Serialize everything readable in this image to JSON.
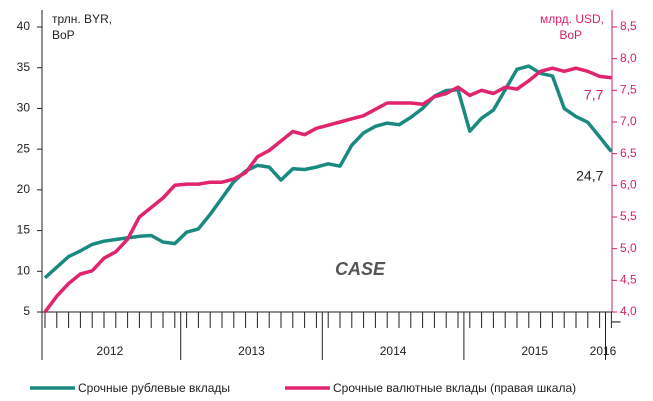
{
  "chart_data": {
    "type": "line",
    "ylabel": [
      "трлн. BYR,",
      "BoP"
    ],
    "y2label": [
      "млрд. USD,",
      "BoP"
    ],
    "logo": "CASE",
    "categories": [
      null,
      null,
      null,
      null,
      null,
      null,
      null,
      null,
      null,
      null,
      null,
      null,
      null,
      null,
      null,
      null,
      null,
      null,
      null,
      null,
      null,
      null,
      null,
      null,
      null,
      null,
      null,
      null,
      null,
      null,
      null,
      null,
      null,
      null,
      null,
      null,
      null,
      null,
      null,
      null,
      null,
      null,
      null,
      null,
      null,
      null,
      null,
      null,
      "I"
    ],
    "year_labels": [
      "2012",
      "2013",
      "2014",
      "2015",
      "2016"
    ],
    "ylim": [
      5,
      40
    ],
    "yticks": [
      5,
      10,
      15,
      20,
      25,
      30,
      35,
      40
    ],
    "y2lim": [
      4,
      8.5
    ],
    "y2ticks": [
      {
        "value": 4,
        "label": "4,0"
      },
      {
        "value": 4.5,
        "label": "4,5"
      },
      {
        "value": 5,
        "label": "5,0"
      },
      {
        "value": 5.5,
        "label": "5,5"
      },
      {
        "value": 6,
        "label": "6,0"
      },
      {
        "value": 6.5,
        "label": "6,5"
      },
      {
        "value": 7,
        "label": "7,0"
      },
      {
        "value": 7.5,
        "label": "7,5"
      },
      {
        "value": 8,
        "label": "8,0"
      },
      {
        "value": 8.5,
        "label": "8,5"
      }
    ],
    "grid": false,
    "series": [
      {
        "name": "Срочные рублевые вклады",
        "color": "#1a8a80",
        "axis": "y",
        "values": [
          9.2,
          10.5,
          11.8,
          12.5,
          13.3,
          13.7,
          13.9,
          14.1,
          14.3,
          14.4,
          13.6,
          13.4,
          14.8,
          15.2,
          17.0,
          19.0,
          21.0,
          22.3,
          23.0,
          22.8,
          21.2,
          22.6,
          22.5,
          22.8,
          23.2,
          22.9,
          25.5,
          27.0,
          27.8,
          28.2,
          28.0,
          28.9,
          30.0,
          31.5,
          32.2,
          32.3,
          27.2,
          28.8,
          29.8,
          32.3,
          34.8,
          35.2,
          34.3,
          34.0,
          30.0,
          29.0,
          28.3,
          26.5,
          24.7
        ],
        "value_labels": [
          null,
          null,
          null,
          null,
          null,
          null,
          null,
          null,
          null,
          null,
          null,
          null,
          null,
          null,
          null,
          null,
          null,
          null,
          null,
          null,
          null,
          null,
          null,
          null,
          null,
          null,
          null,
          null,
          null,
          null,
          null,
          null,
          null,
          null,
          null,
          null,
          null,
          null,
          null,
          null,
          null,
          null,
          null,
          null,
          null,
          null,
          null,
          null,
          "24,7"
        ]
      },
      {
        "name": "Срочные валютные вклады (правая шкала)",
        "color": "#e0246e",
        "axis": "y2",
        "values": [
          4.0,
          4.25,
          4.45,
          4.6,
          4.65,
          4.85,
          4.95,
          5.15,
          5.5,
          5.65,
          5.8,
          6.0,
          6.02,
          6.02,
          6.05,
          6.05,
          6.1,
          6.2,
          6.45,
          6.55,
          6.7,
          6.85,
          6.8,
          6.9,
          6.95,
          7.0,
          7.05,
          7.1,
          7.2,
          7.3,
          7.3,
          7.3,
          7.28,
          7.4,
          7.45,
          7.55,
          7.42,
          7.5,
          7.45,
          7.55,
          7.52,
          7.65,
          7.8,
          7.85,
          7.8,
          7.85,
          7.8,
          7.72,
          7.7
        ],
        "value_labels": [
          null,
          null,
          null,
          null,
          null,
          null,
          null,
          null,
          null,
          null,
          null,
          null,
          null,
          null,
          null,
          null,
          null,
          null,
          null,
          null,
          null,
          null,
          null,
          null,
          null,
          null,
          null,
          null,
          null,
          null,
          null,
          null,
          null,
          null,
          null,
          null,
          null,
          null,
          null,
          null,
          null,
          null,
          null,
          null,
          null,
          null,
          null,
          null,
          "7,7"
        ]
      }
    ]
  }
}
